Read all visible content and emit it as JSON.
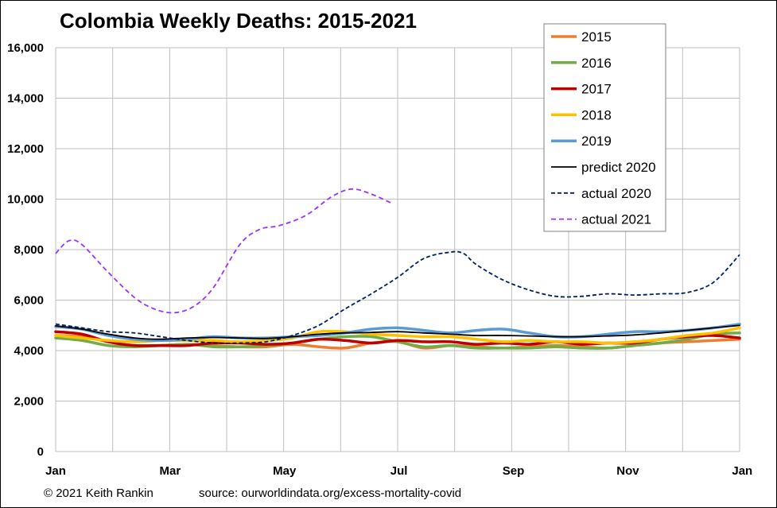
{
  "footer": {
    "credit": "© 2021 Keith Rankin",
    "source": "source:  ourworldindata.org/excess-mortality-covid"
  },
  "chart_data": {
    "type": "line",
    "title": "Colombia Weekly Deaths: 2015-2021",
    "xlabel": "",
    "ylabel": "",
    "x_unit": "week of year",
    "xlim": [
      1,
      53
    ],
    "ylim": [
      0,
      16000
    ],
    "y_ticks": [
      0,
      2000,
      4000,
      6000,
      8000,
      10000,
      12000,
      14000,
      16000
    ],
    "y_tick_labels": [
      "0",
      "2,000",
      "4,000",
      "6,000",
      "8,000",
      "10,000",
      "12,000",
      "14,000",
      "16,000"
    ],
    "x_ticks": [
      1,
      9.7,
      18.4,
      27.1,
      35.8,
      44.5,
      53.2
    ],
    "x_tick_labels": [
      "Jan",
      "Mar",
      "May",
      "Jul",
      "Sep",
      "Nov",
      "Jan"
    ],
    "grid": true,
    "legend_position": "top-right",
    "series": [
      {
        "name": "2015",
        "color": "#ED7D31",
        "width": 3.5,
        "dash": "",
        "x": [
          1,
          3,
          5,
          7,
          9,
          11,
          13,
          15,
          17,
          19,
          21,
          23,
          25,
          27,
          29,
          31,
          33,
          35,
          37,
          39,
          41,
          43,
          45,
          47,
          49,
          51,
          53
        ],
        "y": [
          4600,
          4550,
          4350,
          4200,
          4200,
          4250,
          4200,
          4150,
          4150,
          4250,
          4150,
          4100,
          4300,
          4350,
          4100,
          4200,
          4150,
          4100,
          4150,
          4200,
          4150,
          4100,
          4200,
          4300,
          4350,
          4400,
          4450
        ]
      },
      {
        "name": "2016",
        "color": "#70AD47",
        "width": 3.5,
        "dash": "",
        "x": [
          1,
          3,
          5,
          7,
          9,
          11,
          13,
          15,
          17,
          19,
          21,
          23,
          25,
          27,
          29,
          31,
          33,
          35,
          37,
          39,
          41,
          43,
          45,
          47,
          49,
          51,
          53
        ],
        "y": [
          4500,
          4400,
          4200,
          4150,
          4200,
          4250,
          4150,
          4150,
          4200,
          4300,
          4450,
          4550,
          4550,
          4350,
          4150,
          4200,
          4100,
          4100,
          4100,
          4150,
          4100,
          4100,
          4200,
          4300,
          4450,
          4650,
          4700
        ]
      },
      {
        "name": "2017",
        "color": "#C00000",
        "width": 3.5,
        "dash": "",
        "x": [
          1,
          3,
          5,
          7,
          9,
          11,
          13,
          15,
          17,
          19,
          21,
          23,
          25,
          27,
          29,
          31,
          33,
          35,
          37,
          39,
          41,
          43,
          45,
          47,
          49,
          51,
          53
        ],
        "y": [
          4750,
          4650,
          4350,
          4200,
          4200,
          4200,
          4300,
          4300,
          4250,
          4300,
          4450,
          4400,
          4300,
          4400,
          4350,
          4350,
          4250,
          4300,
          4250,
          4350,
          4250,
          4300,
          4300,
          4450,
          4550,
          4600,
          4500
        ]
      },
      {
        "name": "2018",
        "color": "#FFC000",
        "width": 3.5,
        "dash": "",
        "x": [
          1,
          3,
          5,
          7,
          9,
          11,
          13,
          15,
          17,
          19,
          21,
          23,
          25,
          27,
          29,
          31,
          33,
          35,
          37,
          39,
          41,
          43,
          45,
          47,
          49,
          51,
          53
        ],
        "y": [
          4600,
          4500,
          4400,
          4350,
          4400,
          4400,
          4400,
          4350,
          4400,
          4500,
          4750,
          4750,
          4650,
          4600,
          4550,
          4550,
          4450,
          4350,
          4400,
          4350,
          4350,
          4300,
          4350,
          4450,
          4600,
          4700,
          4900
        ]
      },
      {
        "name": "2019",
        "color": "#5B9BD5",
        "width": 3.5,
        "dash": "",
        "x": [
          1,
          3,
          5,
          7,
          9,
          11,
          13,
          15,
          17,
          19,
          21,
          23,
          25,
          27,
          29,
          31,
          33,
          35,
          37,
          39,
          41,
          43,
          45,
          47,
          49,
          51,
          53
        ],
        "y": [
          4950,
          4850,
          4600,
          4450,
          4400,
          4450,
          4550,
          4500,
          4500,
          4550,
          4600,
          4700,
          4850,
          4900,
          4800,
          4700,
          4800,
          4850,
          4700,
          4550,
          4550,
          4650,
          4750,
          4750,
          4800,
          4900,
          5050
        ]
      },
      {
        "name": "predict 2020",
        "color": "#000000",
        "width": 1.8,
        "dash": "",
        "x": [
          1,
          3,
          5,
          7,
          9,
          11,
          13,
          15,
          17,
          19,
          21,
          23,
          25,
          27,
          29,
          31,
          33,
          35,
          37,
          39,
          41,
          43,
          45,
          47,
          49,
          51,
          53
        ],
        "y": [
          4980,
          4850,
          4650,
          4500,
          4450,
          4500,
          4520,
          4500,
          4480,
          4550,
          4650,
          4700,
          4720,
          4750,
          4700,
          4650,
          4600,
          4600,
          4580,
          4550,
          4550,
          4580,
          4620,
          4700,
          4800,
          4900,
          5000
        ]
      },
      {
        "name": "actual 2020",
        "color": "#002060",
        "width": 1.8,
        "dash": "5,3",
        "x": [
          1,
          3,
          5,
          7,
          9,
          11,
          13,
          15,
          17,
          19,
          21,
          23,
          25,
          27,
          29,
          31,
          32,
          33,
          35,
          37,
          39,
          41,
          43,
          45,
          47,
          49,
          51,
          53
        ],
        "y": [
          5050,
          4900,
          4750,
          4700,
          4550,
          4400,
          4300,
          4300,
          4350,
          4600,
          5000,
          5650,
          6250,
          6900,
          7650,
          7900,
          7850,
          7400,
          6800,
          6400,
          6150,
          6150,
          6250,
          6200,
          6250,
          6300,
          6700,
          7800
        ]
      },
      {
        "name": "actual 2021",
        "color": "#9933FF",
        "width": 1.8,
        "dash": "6,4",
        "x": [
          1,
          2,
          3,
          5,
          7,
          8.5,
          10,
          11.5,
          13,
          15,
          16.5,
          18,
          20,
          22,
          23.5,
          25,
          26.5
        ],
        "y": [
          7850,
          8350,
          8200,
          7100,
          6100,
          5650,
          5500,
          5750,
          6500,
          8200,
          8800,
          8950,
          9350,
          10100,
          10400,
          10200,
          9850
        ]
      }
    ]
  }
}
